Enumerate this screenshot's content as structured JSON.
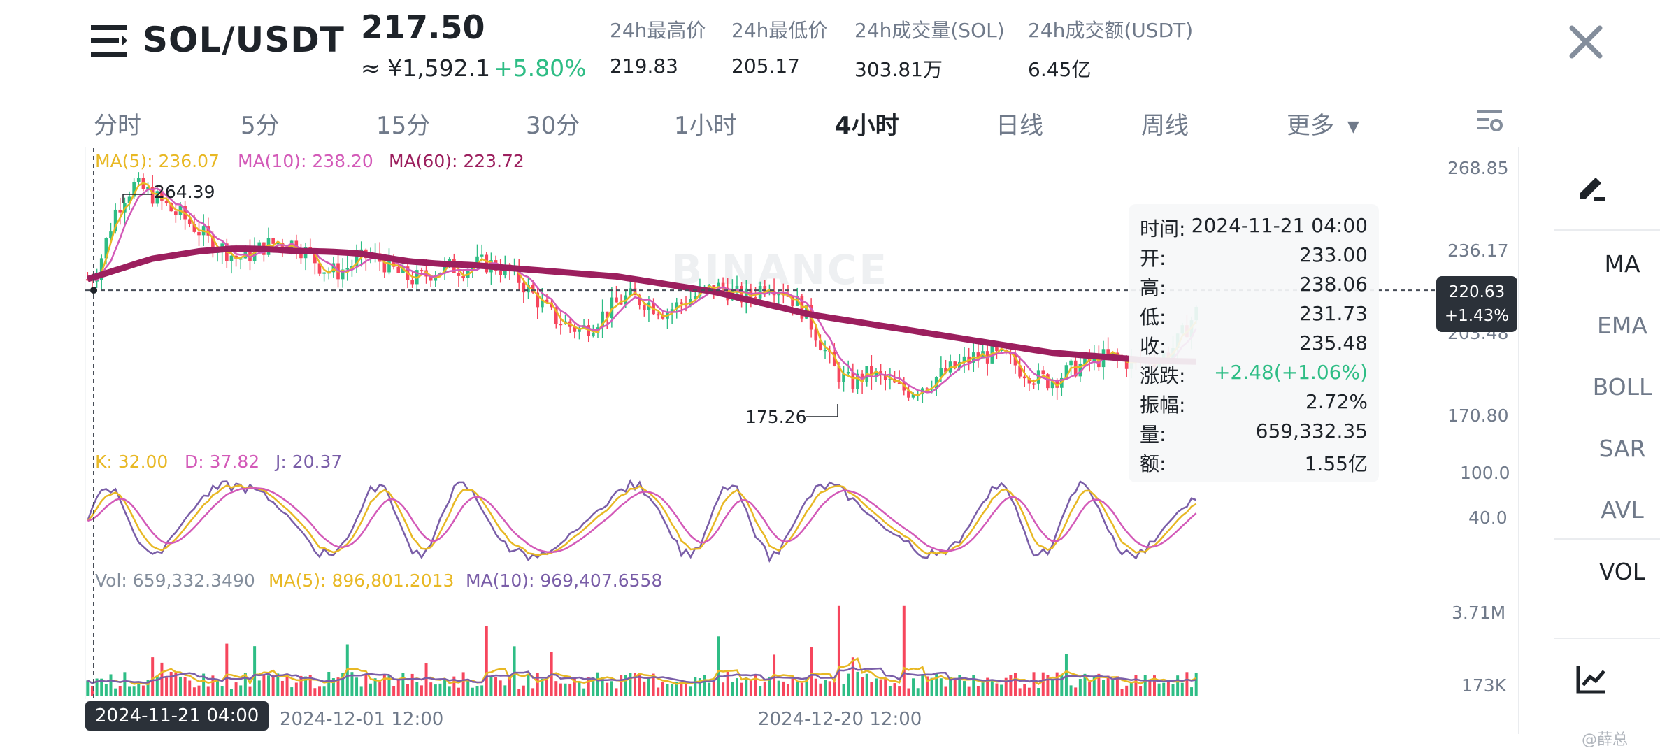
{
  "header": {
    "pair": "SOL/USDT",
    "last_price": "217.50",
    "cny_price": "≈ ¥1,592.1",
    "change_pct": "+5.80%",
    "stats": [
      {
        "label": "24h最高价",
        "value": "219.83"
      },
      {
        "label": "24h最低价",
        "value": "205.17"
      },
      {
        "label": "24h成交量(SOL)",
        "value": "303.81万"
      },
      {
        "label": "24h成交额(USDT)",
        "value": "6.45亿"
      }
    ]
  },
  "tabs": [
    {
      "label": "分时"
    },
    {
      "label": "5分"
    },
    {
      "label": "15分"
    },
    {
      "label": "30分"
    },
    {
      "label": "1小时"
    },
    {
      "label": "4小时"
    },
    {
      "label": "日线"
    },
    {
      "label": "周线"
    },
    {
      "label": "更多"
    }
  ],
  "active_tab": "4小时",
  "legends": {
    "ma5": "MA(5): 236.07",
    "ma10": "MA(10): 238.20",
    "ma60": "MA(60): 223.72",
    "k": "K: 32.00",
    "d": "D: 37.82",
    "j": "J: 20.37",
    "vol": "Vol: 659,332.3490",
    "vol_ma5": "MA(5): 896,801.2013",
    "vol_ma10": "MA(10): 969,407.6558"
  },
  "annotations": {
    "high_label": "264.39",
    "low_label": "175.26"
  },
  "watermark": "BINANCE",
  "price_axis": [
    "268.85",
    "236.17",
    "203.48",
    "170.80"
  ],
  "kdj_axis": [
    "100.0",
    "40.0"
  ],
  "vol_axis": [
    "3.71M",
    "173K"
  ],
  "time_axis": [
    "2024-12-01 12:00",
    "2024-12-20 12:00"
  ],
  "crosshair": {
    "time": "2024-11-21 04:00",
    "price": "220.63",
    "pct": "+1.43%"
  },
  "tooltip": [
    {
      "k": "时间:",
      "v": "2024-11-21 04:00"
    },
    {
      "k": "开:",
      "v": "233.00"
    },
    {
      "k": "高:",
      "v": "238.06"
    },
    {
      "k": "低:",
      "v": "231.73"
    },
    {
      "k": "收:",
      "v": "235.48"
    },
    {
      "k": "涨跌:",
      "v": "+2.48(+1.06%)"
    },
    {
      "k": "振幅:",
      "v": "2.72%"
    },
    {
      "k": "量:",
      "v": "659,332.35"
    },
    {
      "k": "额:",
      "v": "1.55亿"
    }
  ],
  "side_panel": [
    "MA",
    "EMA",
    "BOLL",
    "SAR",
    "AVL",
    "VOL"
  ],
  "corner_watermark": "@薛总",
  "colors": {
    "up": "#2ebd85",
    "down": "#f6465d",
    "ma5": "#e8b824",
    "ma10": "#d35ab8",
    "ma60": "#9c1f5e",
    "j": "#7a5ea8"
  },
  "chart_data": {
    "type": "candlestick",
    "price_axis": [
      170.8,
      268.85
    ],
    "high": 264.39,
    "low": 175.26,
    "close_path": [
      225,
      228,
      240,
      252,
      258,
      262,
      260,
      258,
      255,
      252,
      250,
      247,
      244,
      240,
      238,
      236,
      233,
      234,
      236,
      238,
      239,
      240,
      239,
      237,
      234,
      230,
      228,
      228,
      230,
      232,
      234,
      233,
      231,
      228,
      226,
      225,
      226,
      228,
      229,
      230,
      229,
      230,
      231,
      231,
      230,
      228,
      226,
      222,
      218,
      214,
      210,
      208,
      206,
      205,
      207,
      210,
      213,
      216,
      218,
      217,
      216,
      214,
      212,
      214,
      216,
      218,
      220,
      221,
      222,
      220,
      218,
      218,
      221,
      224,
      222,
      220,
      216,
      212,
      205,
      198,
      190,
      186,
      184,
      186,
      188,
      186,
      184,
      182,
      181,
      182,
      184,
      186,
      188,
      190,
      192,
      194,
      195,
      195,
      194,
      193,
      190,
      188,
      186,
      185,
      186,
      188,
      190,
      192,
      193,
      194,
      194,
      193,
      192,
      192,
      193,
      194,
      196,
      200,
      206,
      212
    ],
    "ma60_path": [
      225,
      227,
      229,
      231,
      233,
      234,
      235,
      236,
      236.5,
      237,
      237,
      236.8,
      236.5,
      236,
      236,
      235.8,
      235.5,
      235,
      234,
      233,
      232,
      231.5,
      231,
      230.8,
      230.5,
      230,
      229.5,
      229,
      228.5,
      228,
      227.5,
      227,
      226.5,
      226,
      225,
      224,
      223,
      222,
      221,
      220,
      218.5,
      217,
      215.5,
      214,
      212.5,
      211,
      210,
      209,
      208,
      207,
      206,
      205,
      204,
      203,
      202,
      201,
      200,
      199,
      198,
      197,
      196,
      195.5,
      195,
      194.5,
      194,
      193.5,
      193,
      192.8,
      192.6,
      192.5
    ]
  }
}
